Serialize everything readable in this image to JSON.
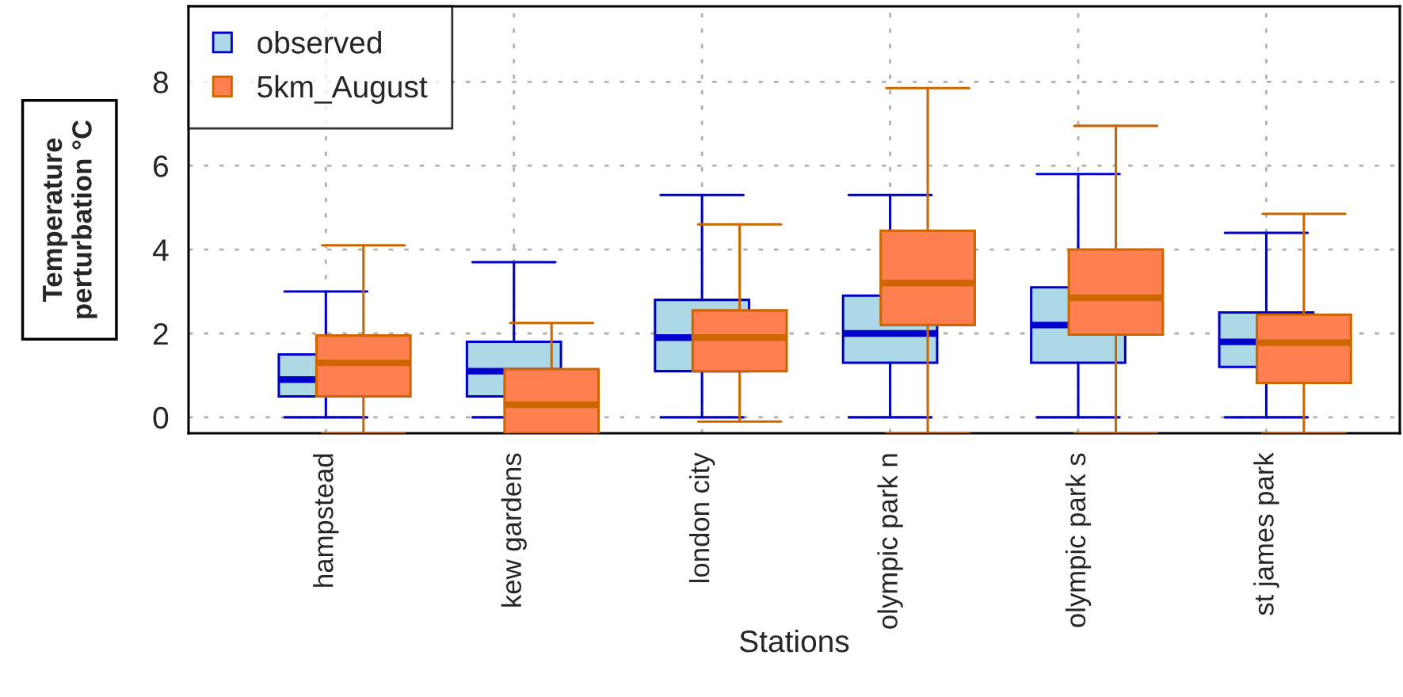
{
  "chart_data": {
    "type": "box",
    "xlabel": "Stations",
    "ylabel": "Temperature\nperturbation °C",
    "categories": [
      "hampstead",
      "kew gardens",
      "london city",
      "olympic park n",
      "olympic park s",
      "st james park"
    ],
    "series": [
      {
        "name": "observed",
        "color": "#add8e6",
        "boxes": [
          {
            "low": 0,
            "q1": 0.5,
            "median": 0.9,
            "q3": 1.5,
            "high": 3.0
          },
          {
            "low": 0,
            "q1": 0.5,
            "median": 1.1,
            "q3": 1.8,
            "high": 3.7
          },
          {
            "low": 0,
            "q1": 1.1,
            "median": 1.9,
            "q3": 2.8,
            "high": 5.3
          },
          {
            "low": 0,
            "q1": 1.3,
            "median": 2.0,
            "q3": 2.9,
            "high": 5.3
          },
          {
            "low": 0,
            "q1": 1.3,
            "median": 2.2,
            "q3": 3.1,
            "high": 5.8
          },
          {
            "low": 0,
            "q1": 1.2,
            "median": 1.8,
            "q3": 2.5,
            "high": 4.4
          }
        ]
      },
      {
        "name": "5km_August",
        "color": "#ff7f50",
        "boxes": [
          {
            "low": -0.38,
            "q1": 0.5,
            "median": 1.3,
            "q3": 1.95,
            "high": 4.1
          },
          {
            "low": -0.38,
            "q1": -0.38,
            "median": 0.3,
            "q3": 1.15,
            "high": 2.25
          },
          {
            "low": -0.1,
            "q1": 1.1,
            "median": 1.9,
            "q3": 2.55,
            "high": 4.6
          },
          {
            "low": -0.38,
            "q1": 2.2,
            "median": 3.2,
            "q3": 4.45,
            "high": 7.85
          },
          {
            "low": -0.38,
            "q1": 1.97,
            "median": 2.85,
            "q3": 4.0,
            "high": 6.95
          },
          {
            "low": -0.38,
            "q1": 0.82,
            "median": 1.78,
            "q3": 2.45,
            "high": 4.85
          }
        ]
      }
    ],
    "ylim": [
      -0.38,
      9.8
    ],
    "yticks": [
      0,
      2,
      4,
      6,
      8
    ],
    "grid": true,
    "legend": "top left"
  }
}
